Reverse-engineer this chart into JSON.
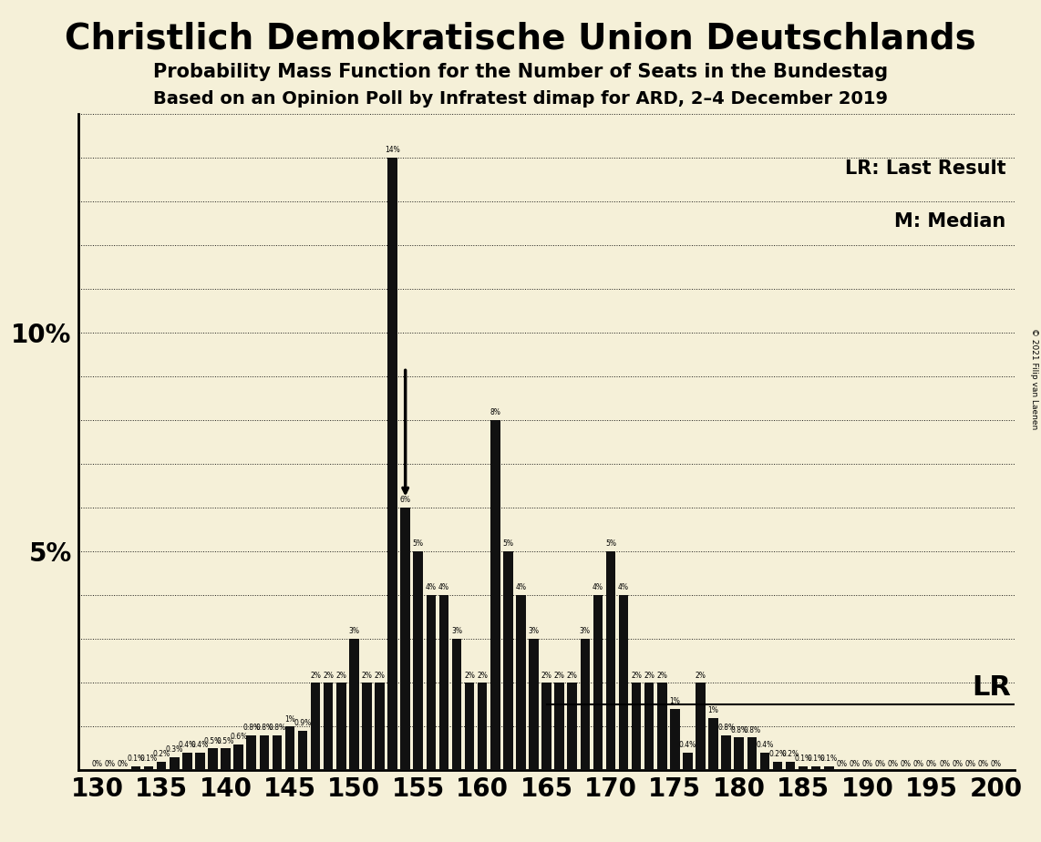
{
  "title": "Christlich Demokratische Union Deutschlands",
  "subtitle1": "Probability Mass Function for the Number of Seats in the Bundestag",
  "subtitle2": "Based on an Opinion Poll by Infratest dimap for ARD, 2–4 December 2019",
  "legend_lr": "LR: Last Result",
  "legend_m": "M: Median",
  "lr_label": "LR",
  "copyright": "© 2021 Filip van Laenen",
  "background_color": "#f5f0d8",
  "bar_color": "#111111",
  "seats": [
    130,
    131,
    132,
    133,
    134,
    135,
    136,
    137,
    138,
    139,
    140,
    141,
    142,
    143,
    144,
    145,
    146,
    147,
    148,
    149,
    150,
    151,
    152,
    153,
    154,
    155,
    156,
    157,
    158,
    159,
    160,
    161,
    162,
    163,
    164,
    165,
    166,
    167,
    168,
    169,
    170,
    171,
    172,
    173,
    174,
    175,
    176,
    177,
    178,
    179,
    180,
    181,
    182,
    183,
    184,
    185,
    186,
    187,
    188,
    189,
    190,
    191,
    192,
    193,
    194,
    195,
    196,
    197,
    198,
    199,
    200
  ],
  "probs": [
    0.0,
    0.0,
    0.0,
    0.1,
    0.1,
    0.2,
    0.3,
    0.4,
    0.4,
    0.5,
    0.5,
    0.6,
    0.8,
    0.8,
    0.8,
    1.0,
    0.9,
    2.0,
    2.0,
    2.0,
    3.0,
    2.0,
    2.0,
    14.0,
    6.0,
    5.0,
    4.0,
    4.0,
    3.0,
    2.0,
    2.0,
    8.0,
    5.0,
    4.0,
    3.0,
    2.0,
    2.0,
    2.0,
    3.0,
    4.0,
    5.0,
    4.0,
    2.0,
    2.0,
    2.0,
    1.4,
    0.4,
    2.0,
    1.2,
    0.8,
    0.75,
    0.75,
    0.4,
    0.2,
    0.2,
    0.1,
    0.1,
    0.1,
    0.0,
    0.0,
    0.0,
    0.0,
    0.0,
    0.0,
    0.0,
    0.0,
    0.0,
    0.0,
    0.0,
    0.0,
    0.0
  ],
  "median_seat": 154,
  "median_label": "M",
  "ylim": [
    0,
    15
  ],
  "xlim": [
    128.5,
    201.5
  ],
  "xticks": [
    130,
    135,
    140,
    145,
    150,
    155,
    160,
    165,
    170,
    175,
    180,
    185,
    190,
    195,
    200
  ],
  "lr_y": 1.5,
  "lr_line_start": 165,
  "label_fontsize": 5.5,
  "axis_fontsize": 20,
  "title_fontsize": 28,
  "sub1_fontsize": 15,
  "sub2_fontsize": 14,
  "legend_fontsize": 15,
  "lr_fontsize": 22
}
